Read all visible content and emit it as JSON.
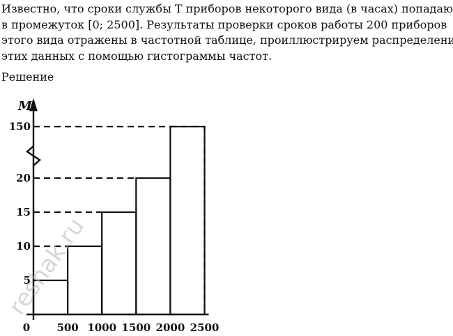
{
  "problem": {
    "lines": [
      "Известно, что сроки службы Т приборов некоторого вида (в часах) попадают",
      "в промежуток [0;  2500]. Результаты проверки сроков работы 200 приборов",
      "этого вида отражены в частотной таблице, проиллюстрируем распределения",
      "этих данных с помощью гистограммы частот."
    ]
  },
  "solution_heading": "Решение",
  "watermark": "reshak.ru",
  "chart_data": {
    "type": "bar",
    "histogram": true,
    "title": "",
    "xlabel": "",
    "ylabel": "M",
    "x_ticks": [
      "0",
      "500",
      "1000",
      "1500",
      "2000",
      "2500"
    ],
    "y_ticks": [
      "5",
      "10",
      "15",
      "20",
      "150"
    ],
    "y_axis_break": "between 20 and 150",
    "bins": [
      {
        "from": 0,
        "to": 500,
        "value": 5
      },
      {
        "from": 500,
        "to": 1000,
        "value": 10
      },
      {
        "from": 1000,
        "to": 1500,
        "value": 15
      },
      {
        "from": 1500,
        "to": 2000,
        "value": 20
      },
      {
        "from": 2000,
        "to": 2500,
        "value": 150
      }
    ],
    "guide_lines": "dashed",
    "grid": false
  }
}
